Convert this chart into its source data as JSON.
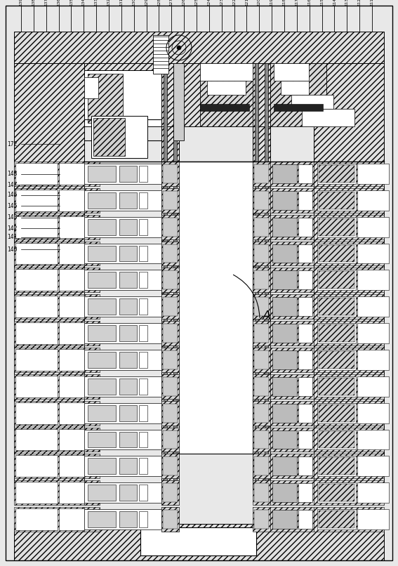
{
  "bg_color": "#ffffff",
  "hatch_color": "#555555",
  "line_color": "#000000",
  "top_labels": [
    "111",
    "112",
    "113",
    "114",
    "115",
    "116",
    "117",
    "118",
    "119",
    "120",
    "121",
    "122",
    "123",
    "124",
    "125",
    "126",
    "127",
    "128",
    "129",
    "130",
    "131",
    "132",
    "133",
    "134",
    "135",
    "136",
    "137",
    "138",
    "139"
  ],
  "left_label_data": [
    [
      "140",
      355
    ],
    [
      "141",
      338
    ],
    [
      "142",
      325
    ],
    [
      "143",
      310
    ],
    [
      "145",
      293
    ],
    [
      "146",
      278
    ],
    [
      "147",
      263
    ],
    [
      "148",
      248
    ],
    [
      "172",
      205
    ]
  ],
  "label_A": "A",
  "figsize": [
    5.67,
    8.06
  ],
  "dpi": 100
}
